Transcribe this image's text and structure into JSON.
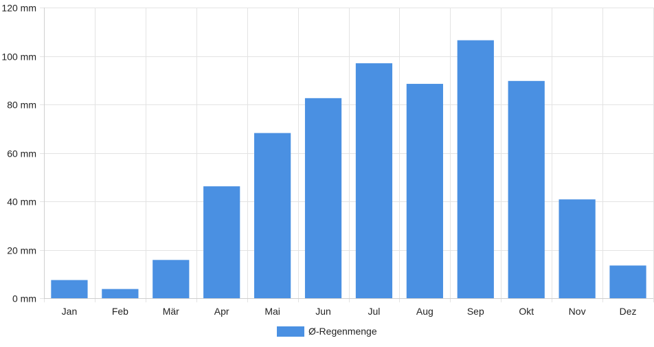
{
  "chart_data": {
    "type": "bar",
    "categories": [
      "Jan",
      "Feb",
      "Mär",
      "Apr",
      "Mai",
      "Jun",
      "Jul",
      "Aug",
      "Sep",
      "Okt",
      "Nov",
      "Dez"
    ],
    "series": [
      {
        "name": "Ø-Regenmenge",
        "color": "#4a90e2",
        "values": [
          7.5,
          3.8,
          15.8,
          46.2,
          68.2,
          82.6,
          97.0,
          88.5,
          106.5,
          89.7,
          40.8,
          13.5
        ]
      }
    ],
    "ylim": [
      0,
      120
    ],
    "yticks": [
      0,
      20,
      40,
      60,
      80,
      100,
      120
    ],
    "y_unit": "mm",
    "grid": true,
    "legend_position": "bottom"
  }
}
